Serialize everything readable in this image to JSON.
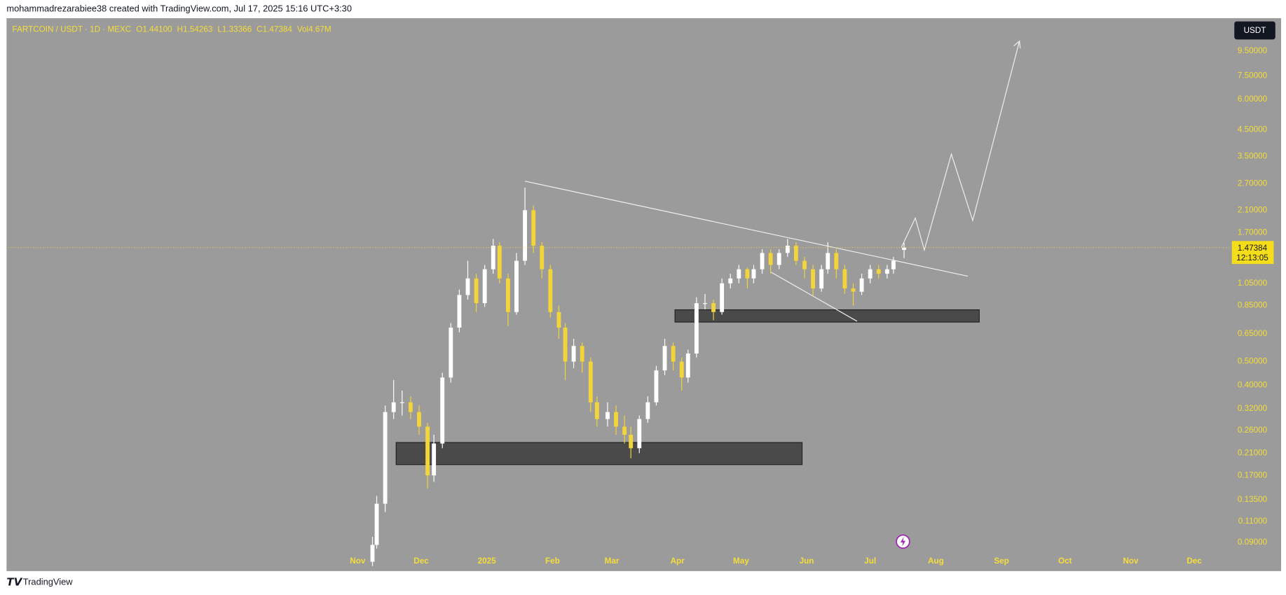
{
  "header": {
    "attribution": "mohammadrezarabiee38 created with TradingView.com, Jul 17, 2025 15:16 UTC+3:30",
    "logo": "TradingView"
  },
  "chart_data": {
    "type": "candlestick",
    "title": "FARTCOIN / USDT · 1D · MEXC",
    "legend": [
      {
        "key": "O",
        "value": "1.44100"
      },
      {
        "key": "H",
        "value": "1.54263"
      },
      {
        "key": "L",
        "value": "1.33366"
      },
      {
        "key": "C",
        "value": "1.47384"
      },
      {
        "key": "Vol",
        "value": "4.67M"
      }
    ],
    "currency": "USDT",
    "last_price_label": "1.47384",
    "countdown": "12:13:05",
    "x": [
      7,
      9,
      13,
      17,
      21,
      25,
      29,
      33,
      36,
      40,
      44,
      48,
      52,
      56,
      60,
      64,
      67,
      71,
      75,
      79,
      83,
      87,
      91,
      95,
      98,
      102,
      106,
      110,
      113,
      118,
      122,
      126,
      129,
      133,
      137,
      141,
      145,
      149,
      153,
      156,
      160,
      164,
      168,
      172,
      176,
      180,
      184,
      187,
      191,
      195,
      199,
      203,
      207,
      211,
      215,
      219,
      222,
      226,
      230,
      234,
      238,
      242,
      246,
      250,
      253,
      258
    ],
    "open": [
      0.075,
      0.088,
      0.13,
      0.31,
      0.34,
      0.34,
      0.31,
      0.27,
      0.17,
      0.23,
      0.43,
      0.69,
      0.94,
      1.1,
      0.87,
      1.2,
      1.5,
      1.1,
      0.8,
      1.3,
      2.1,
      1.5,
      1.2,
      0.8,
      0.69,
      0.5,
      0.58,
      0.5,
      0.34,
      0.29,
      0.31,
      0.27,
      0.25,
      0.22,
      0.29,
      0.34,
      0.46,
      0.58,
      0.5,
      0.43,
      0.54,
      0.87,
      0.87,
      0.8,
      1.05,
      1.1,
      1.2,
      1.1,
      1.2,
      1.4,
      1.25,
      1.4,
      1.5,
      1.3,
      1.2,
      1.0,
      1.2,
      1.4,
      1.2,
      1.0,
      0.97,
      1.1,
      1.2,
      1.15,
      1.2,
      1.441
    ],
    "high": [
      0.095,
      0.14,
      0.33,
      0.42,
      0.38,
      0.36,
      0.33,
      0.28,
      0.25,
      0.45,
      0.72,
      0.99,
      1.3,
      1.15,
      1.25,
      1.6,
      1.55,
      1.15,
      1.4,
      2.6,
      2.2,
      1.55,
      1.25,
      0.85,
      0.72,
      0.62,
      0.6,
      0.52,
      0.36,
      0.34,
      0.33,
      0.3,
      0.27,
      0.3,
      0.36,
      0.48,
      0.62,
      0.6,
      0.52,
      0.56,
      0.92,
      0.95,
      0.9,
      1.1,
      1.15,
      1.25,
      1.22,
      1.25,
      1.45,
      1.45,
      1.45,
      1.6,
      1.55,
      1.35,
      1.25,
      1.25,
      1.55,
      1.45,
      1.25,
      1.05,
      1.15,
      1.25,
      1.25,
      1.25,
      1.35,
      1.54263
    ],
    "low": [
      0.072,
      0.085,
      0.12,
      0.29,
      0.3,
      0.29,
      0.25,
      0.15,
      0.16,
      0.22,
      0.41,
      0.66,
      0.9,
      0.8,
      0.84,
      1.15,
      1.05,
      0.7,
      0.78,
      1.25,
      1.4,
      1.1,
      0.76,
      0.62,
      0.42,
      0.47,
      0.45,
      0.31,
      0.27,
      0.27,
      0.25,
      0.23,
      0.2,
      0.21,
      0.28,
      0.33,
      0.44,
      0.46,
      0.38,
      0.41,
      0.52,
      0.82,
      0.74,
      0.78,
      1.0,
      1.05,
      1.0,
      1.05,
      1.15,
      1.15,
      1.2,
      1.35,
      1.25,
      1.1,
      0.93,
      0.97,
      1.15,
      1.1,
      0.95,
      0.85,
      0.94,
      1.05,
      1.1,
      1.1,
      1.15,
      1.33366
    ],
    "close": [
      0.088,
      0.13,
      0.31,
      0.34,
      0.34,
      0.31,
      0.27,
      0.17,
      0.23,
      0.43,
      0.69,
      0.94,
      1.1,
      0.87,
      1.2,
      1.5,
      1.1,
      0.8,
      1.3,
      2.1,
      1.5,
      1.2,
      0.8,
      0.69,
      0.5,
      0.58,
      0.5,
      0.34,
      0.29,
      0.31,
      0.27,
      0.25,
      0.22,
      0.29,
      0.34,
      0.46,
      0.58,
      0.5,
      0.43,
      0.54,
      0.87,
      0.87,
      0.8,
      1.05,
      1.1,
      1.2,
      1.1,
      1.2,
      1.4,
      1.25,
      1.4,
      1.5,
      1.3,
      1.2,
      1.0,
      1.2,
      1.4,
      1.2,
      1.0,
      0.97,
      1.1,
      1.2,
      1.15,
      1.2,
      1.3,
      1.47384
    ],
    "xlim": [
      -165,
      412
    ],
    "xticks": [
      {
        "value": 0,
        "label": "Nov"
      },
      {
        "value": 30,
        "label": "Dec"
      },
      {
        "value": 61,
        "label": "2025"
      },
      {
        "value": 92,
        "label": "Feb"
      },
      {
        "value": 120,
        "label": "Mar"
      },
      {
        "value": 151,
        "label": "Apr"
      },
      {
        "value": 181,
        "label": "May"
      },
      {
        "value": 212,
        "label": "Jun"
      },
      {
        "value": 242,
        "label": "Jul"
      },
      {
        "value": 273,
        "label": "Aug"
      },
      {
        "value": 304,
        "label": "Sep"
      },
      {
        "value": 334,
        "label": "Oct"
      },
      {
        "value": 365,
        "label": "Nov"
      },
      {
        "value": 395,
        "label": "Dec"
      }
    ],
    "ylim": [
      0.0697,
      12.77
    ],
    "log_scale": true,
    "yticks": [
      {
        "value": 9.5,
        "label": "9.50000"
      },
      {
        "value": 7.5,
        "label": "7.50000"
      },
      {
        "value": 6,
        "label": "6.00000"
      },
      {
        "value": 4.5,
        "label": "4.50000"
      },
      {
        "value": 3.5,
        "label": "3.50000"
      },
      {
        "value": 2.7,
        "label": "2.70000"
      },
      {
        "value": 2.1,
        "label": "2.10000"
      },
      {
        "value": 1.7,
        "label": "1.70000"
      },
      {
        "value": 1.05,
        "label": "1.05000"
      },
      {
        "value": 0.85,
        "label": "0.85000"
      },
      {
        "value": 0.65,
        "label": "0.65000"
      },
      {
        "value": 0.5,
        "label": "0.50000"
      },
      {
        "value": 0.4,
        "label": "0.40000"
      },
      {
        "value": 0.32,
        "label": "0.32000"
      },
      {
        "value": 0.26,
        "label": "0.26000"
      },
      {
        "value": 0.21,
        "label": "0.21000"
      },
      {
        "value": 0.17,
        "label": "0.17000"
      },
      {
        "value": 0.135,
        "label": "0.13500"
      },
      {
        "value": 0.11,
        "label": "0.11000"
      },
      {
        "value": 0.09,
        "label": "0.09000"
      }
    ],
    "up_color": "#ffffff",
    "down_color": "#f2d43b",
    "label_color": "#f5dd3a"
  }
}
